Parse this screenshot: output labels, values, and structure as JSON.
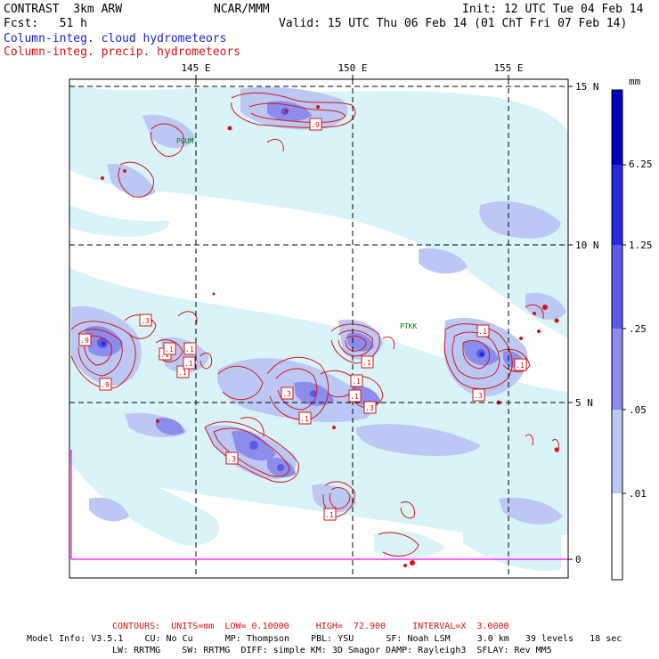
{
  "header": {
    "model": "CONTRAST  3km ARW",
    "center": "NCAR/MMM",
    "init": "Init: 12 UTC Tue 04 Feb 14",
    "forecast": "Fcst:   51 h",
    "valid": "Valid: 15 UTC Thu 06 Feb 14 (01 ChT Fri 07 Feb 14)",
    "field_cloud": "Column-integ. cloud hydrometeors",
    "field_precip": "Column-integ. precip. hydrometeors"
  },
  "colors": {
    "cloud_field": "#2020c8",
    "precip_contours": "#d41414",
    "station_label": "#008000",
    "boundary": "#ff00ff"
  },
  "map": {
    "lon_labels": [
      "145 E",
      "150 E",
      "155 E"
    ],
    "lat_labels": [
      "15 N",
      "10 N",
      "5 N",
      "0"
    ],
    "stations": [
      "PGUM",
      "PTKK"
    ],
    "contour_labels": [
      ".9",
      ".9",
      ".3",
      ".1",
      ".1",
      ".1",
      ".3",
      ".9",
      ".1",
      ".3",
      ".1",
      ".1",
      ".1",
      ".3",
      ".1",
      ".1",
      ".3",
      ".1",
      ".1",
      ".1"
    ]
  },
  "legend": {
    "units": "mm",
    "shade_levels": [
      ".01",
      ".05",
      ".25",
      "1.25",
      "6.25"
    ],
    "shade_colors": [
      "#ffffff",
      "#d8f4f8",
      "#bcc8f4",
      "#8c8cec",
      "#5a5ae8",
      "#2828e0",
      "#0000c0"
    ]
  },
  "footer": {
    "contours_line": "CONTOURS:  UNITS=mm  LOW= 0.10000     HIGH=  72.900     INTERVAL=X  3.0000",
    "model_info": "Model Info: V3.5.1    CU: No Cu      MP: Thompson    PBL: YSU      SF: Noah LSM     3.0 km   39 levels   18 sec",
    "model_info2": "LW: RRTMG    SW: RRTMG  DIFF: simple KM: 3D Smagor DAMP: Rayleigh3  SFLAY: Rev MM5"
  }
}
